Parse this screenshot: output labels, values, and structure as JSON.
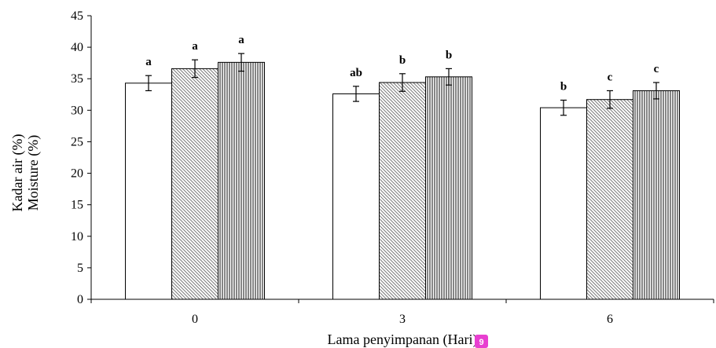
{
  "chart_data": {
    "type": "bar",
    "title": "",
    "xlabel": "Lama penyimpanan (Hari)",
    "ylabel_lines": [
      "Kadar air (%)",
      "Moisture (%)"
    ],
    "categories": [
      "0",
      "3",
      "6"
    ],
    "ylim": [
      0,
      45
    ],
    "yticks": [
      0,
      5,
      10,
      15,
      20,
      25,
      30,
      35,
      40,
      45
    ],
    "grid": false,
    "legend": "none",
    "series": [
      {
        "pattern": "white",
        "values": [
          34.3,
          32.6,
          30.4
        ],
        "errors": [
          1.2,
          1.2,
          1.2
        ],
        "labels": [
          "a",
          "ab",
          "b"
        ]
      },
      {
        "pattern": "diagonal-hatch",
        "values": [
          36.6,
          34.4,
          31.7
        ],
        "errors": [
          1.4,
          1.4,
          1.4
        ],
        "labels": [
          "a",
          "b",
          "c"
        ]
      },
      {
        "pattern": "vertical-hatch",
        "values": [
          37.6,
          35.3,
          33.1
        ],
        "errors": [
          1.4,
          1.3,
          1.3
        ],
        "labels": [
          "a",
          "b",
          "c"
        ]
      }
    ]
  },
  "badge": {
    "text": "9",
    "color": "#e83fd0"
  }
}
